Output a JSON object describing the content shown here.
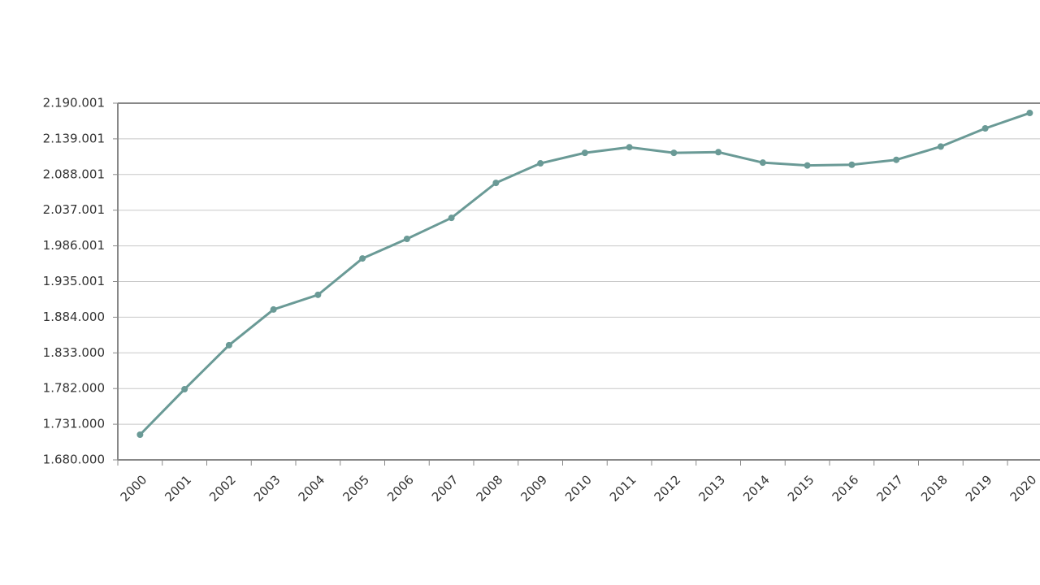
{
  "chart_data": {
    "type": "line",
    "categories": [
      "2000",
      "2001",
      "2002",
      "2003",
      "2004",
      "2005",
      "2006",
      "2007",
      "2008",
      "2009",
      "2010",
      "2011",
      "2012",
      "2013",
      "2014",
      "2015",
      "2016",
      "2017",
      "2018",
      "2019",
      "2020"
    ],
    "series": [
      {
        "color": "#6a9a96",
        "values": [
          1716000,
          1781000,
          1844000,
          1895000,
          1916000,
          1968000,
          1996000,
          2026000,
          2076000,
          2104000,
          2119000,
          2127000,
          2119000,
          2120000,
          2105000,
          2101000,
          2102000,
          2109000,
          2128000,
          2154000,
          2176000
        ]
      }
    ],
    "ylim": [
      1680000,
      2190001
    ],
    "yticks": [
      {
        "value": 1680000,
        "label": "1.680.000"
      },
      {
        "value": 1731000,
        "label": "1.731.000"
      },
      {
        "value": 1782000,
        "label": "1.782.000"
      },
      {
        "value": 1833000,
        "label": "1.833.000"
      },
      {
        "value": 1884000,
        "label": "1.884.000"
      },
      {
        "value": 1935001,
        "label": "1.935.001"
      },
      {
        "value": 1986001,
        "label": "1.986.001"
      },
      {
        "value": 2037001,
        "label": "2.037.001"
      },
      {
        "value": 2088001,
        "label": "2.088.001"
      },
      {
        "value": 2139001,
        "label": "2.139.001"
      },
      {
        "value": 2190001,
        "label": "2.190.001"
      }
    ],
    "grid": true
  }
}
